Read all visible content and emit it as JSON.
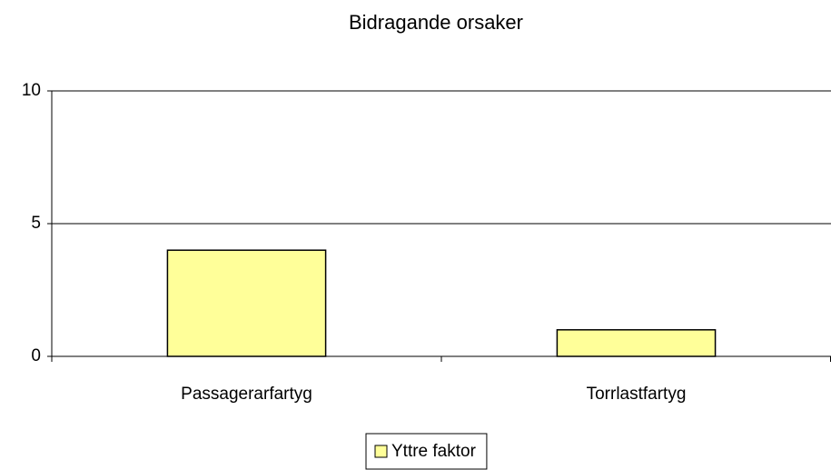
{
  "chart_data": {
    "type": "bar",
    "title": "Bidragande orsaker",
    "categories": [
      "Passagerarfartyg",
      "Torrlastfartyg"
    ],
    "series": [
      {
        "name": "Yttre faktor",
        "color": "#ffff99",
        "values": [
          4,
          1
        ]
      }
    ],
    "ylim": [
      0,
      10
    ],
    "yticks": [
      0,
      5,
      10
    ],
    "grid": true,
    "legend": "bottom"
  }
}
